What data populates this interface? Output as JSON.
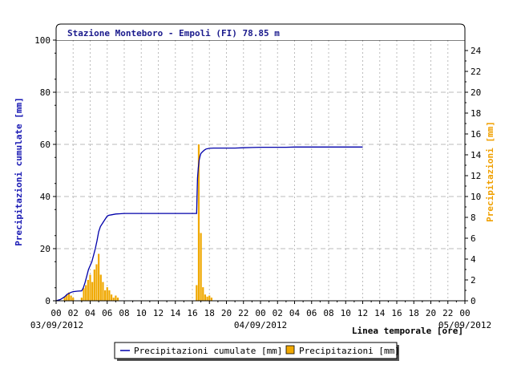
{
  "chart_data": {
    "type": "bar+line",
    "title": "Stazione Monteboro - Empoli (FI) 78.85 m",
    "xlabel": "Linea temporale [ore]",
    "ylabel_left": "Precipitazioni cumulate [mm]",
    "ylabel_right": "Precipitazioni [mm]",
    "x_unit": "hours",
    "xlim": [
      0,
      48
    ],
    "ylim_left": [
      0,
      100
    ],
    "ylim_right": [
      0,
      25
    ],
    "y_left_ticks": [
      0,
      20,
      40,
      60,
      80,
      100
    ],
    "y_right_ticks": [
      0,
      2,
      4,
      6,
      8,
      10,
      12,
      14,
      16,
      18,
      20,
      22,
      24
    ],
    "x_tick_labels": [
      "00",
      "02",
      "04",
      "06",
      "08",
      "10",
      "12",
      "14",
      "16",
      "18",
      "20",
      "22",
      "00",
      "02",
      "04",
      "06",
      "08",
      "10",
      "12",
      "14",
      "16",
      "18",
      "20",
      "22",
      "00"
    ],
    "date_labels": [
      "03/09/2012",
      "04/09/2012",
      "05/09/2012"
    ],
    "grid": true,
    "series": [
      {
        "name": "Precipitazioni cumulate [mm]",
        "type": "line",
        "axis": "left",
        "color": "#0000aa",
        "x": [
          0.0,
          0.5,
          1.0,
          1.3,
          1.6,
          1.8,
          2.0,
          2.5,
          3.0,
          3.2,
          3.4,
          3.6,
          3.8,
          4.0,
          4.2,
          4.4,
          4.6,
          4.8,
          5.0,
          5.2,
          5.4,
          5.6,
          5.8,
          6.0,
          6.2,
          6.5,
          7.0,
          7.5,
          8.0,
          9,
          10,
          11,
          12,
          13,
          14,
          15,
          16,
          16.5,
          16.55,
          16.6,
          16.7,
          16.8,
          16.9,
          17.0,
          17.2,
          17.4,
          17.6,
          18.0,
          18.5,
          19,
          20,
          21,
          22,
          23,
          24,
          25,
          26,
          27,
          28,
          29,
          30,
          31,
          32,
          33,
          34,
          35,
          36
        ],
        "y": [
          0.0,
          0.5,
          1.5,
          2.5,
          3.0,
          3.3,
          3.5,
          3.7,
          3.8,
          5.0,
          7.0,
          9.5,
          12.0,
          13.5,
          15.0,
          17.5,
          20.0,
          23.0,
          26.5,
          28.5,
          29.5,
          30.5,
          31.5,
          32.5,
          32.8,
          33.0,
          33.3,
          33.4,
          33.5,
          33.5,
          33.5,
          33.5,
          33.5,
          33.5,
          33.5,
          33.5,
          33.5,
          33.5,
          40.0,
          47.0,
          51.0,
          54.0,
          55.5,
          56.5,
          57.2,
          57.8,
          58.2,
          58.5,
          58.6,
          58.6,
          58.6,
          58.6,
          58.7,
          58.8,
          58.9,
          58.9,
          58.9,
          58.9,
          59.0,
          59.0,
          59.0,
          59.0,
          59.0,
          59.0,
          59.0,
          59.0,
          59.0
        ]
      },
      {
        "name": "Precipitazioni [mm]",
        "type": "bar",
        "axis": "right",
        "color": "#f0a800",
        "x": [
          1.0,
          1.25,
          1.5,
          1.75,
          2.0,
          3.0,
          3.25,
          3.5,
          3.75,
          4.0,
          4.25,
          4.5,
          4.75,
          5.0,
          5.25,
          5.5,
          5.75,
          6.0,
          6.25,
          6.5,
          6.75,
          7.0,
          7.25,
          16.5,
          16.75,
          17.0,
          17.25,
          17.5,
          17.75,
          18.0,
          18.25
        ],
        "values": [
          0.4,
          0.6,
          0.8,
          0.5,
          0.3,
          0.3,
          1.2,
          1.5,
          2.0,
          2.5,
          1.8,
          3.0,
          3.5,
          4.5,
          2.5,
          1.8,
          1.0,
          1.3,
          1.0,
          0.6,
          0.3,
          0.5,
          0.3,
          1.5,
          15.0,
          6.5,
          1.3,
          0.6,
          0.4,
          0.5,
          0.3
        ]
      }
    ],
    "legend": {
      "placement": "bottom-center",
      "entries": [
        "Precipitazioni cumulate [mm]",
        "Precipitazioni [mm]"
      ]
    }
  }
}
